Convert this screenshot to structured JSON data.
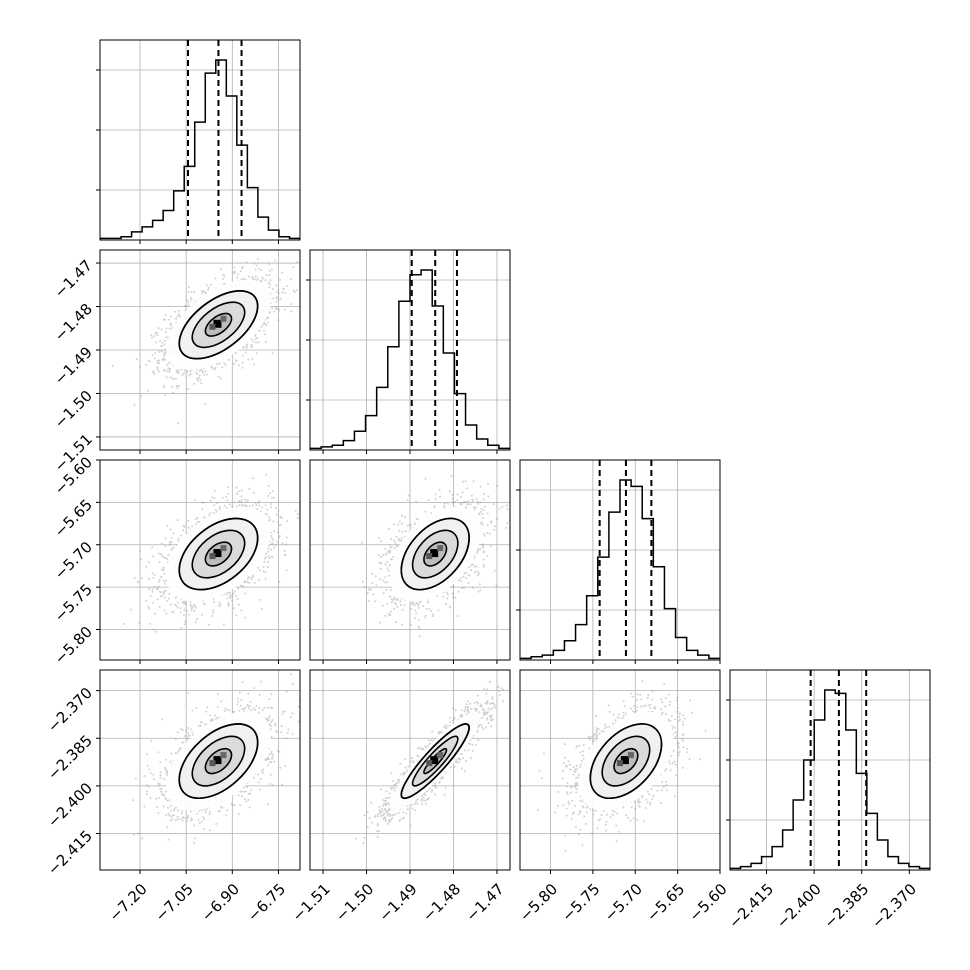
{
  "chart_data": {
    "type": "corner",
    "grid": true,
    "parameters": [
      {
        "range": [
          -7.33,
          -6.68
        ],
        "ticks": [
          -7.2,
          -7.05,
          -6.9,
          -6.75
        ],
        "tick_labels": [
          "−7.20",
          "−7.05",
          "−6.90",
          "−6.75"
        ],
        "center": -6.945,
        "sigma": 0.085,
        "quantiles": [
          -7.044,
          -6.945,
          -6.87
        ]
      },
      {
        "range": [
          -1.513,
          -1.467
        ],
        "ticks": [
          -1.51,
          -1.5,
          -1.49,
          -1.48,
          -1.47
        ],
        "tick_labels": [
          "−1.51",
          "−1.50",
          "−1.49",
          "−1.48",
          "−1.47"
        ],
        "center": -1.4842,
        "sigma": 0.0052,
        "quantiles": [
          -1.4896,
          -1.4842,
          -1.4792
        ]
      },
      {
        "range": [
          -5.836,
          -5.6
        ],
        "ticks": [
          -5.8,
          -5.75,
          -5.7,
          -5.65,
          -5.6
        ],
        "tick_labels": [
          "−5.80",
          "−5.75",
          "−5.70",
          "−5.65",
          "−5.60"
        ],
        "center": -5.711,
        "sigma": 0.028,
        "quantiles": [
          -5.742,
          -5.711,
          -5.681
        ]
      },
      {
        "range": [
          -2.4265,
          -2.3635
        ],
        "ticks": [
          -2.415,
          -2.4,
          -2.385,
          -2.37
        ],
        "tick_labels": [
          "−2.415",
          "−2.400",
          "−2.385",
          "−2.370"
        ],
        "center": -2.3922,
        "sigma": 0.0078,
        "quantiles": [
          -2.4011,
          -2.3922,
          -2.3836
        ]
      }
    ],
    "correlations": [
      [
        1,
        0.55,
        0.45,
        0.5
      ],
      [
        0.55,
        1,
        0.45,
        0.9
      ],
      [
        0.45,
        0.45,
        1,
        0.45
      ],
      [
        0.5,
        0.9,
        0.45,
        1
      ]
    ],
    "histograms": [
      [
        1,
        1,
        2,
        5,
        8,
        12,
        18,
        30,
        45,
        72,
        102,
        110,
        88,
        58,
        32,
        14,
        6,
        2,
        1
      ],
      [
        1,
        2,
        3,
        6,
        12,
        22,
        40,
        66,
        95,
        112,
        115,
        92,
        62,
        36,
        16,
        7,
        3,
        1
      ],
      [
        1,
        2,
        3,
        6,
        12,
        22,
        40,
        64,
        92,
        112,
        108,
        88,
        58,
        32,
        14,
        6,
        3,
        1
      ],
      [
        1,
        2,
        4,
        8,
        14,
        24,
        42,
        66,
        90,
        108,
        106,
        84,
        58,
        34,
        18,
        8,
        4,
        2,
        1
      ]
    ],
    "contour_sigma_levels": [
      0.5,
      1.0,
      1.5,
      2.0
    ],
    "colors": {
      "line": "#000000",
      "grid": "#b0b0b0",
      "points": "#9a9a9a"
    }
  }
}
